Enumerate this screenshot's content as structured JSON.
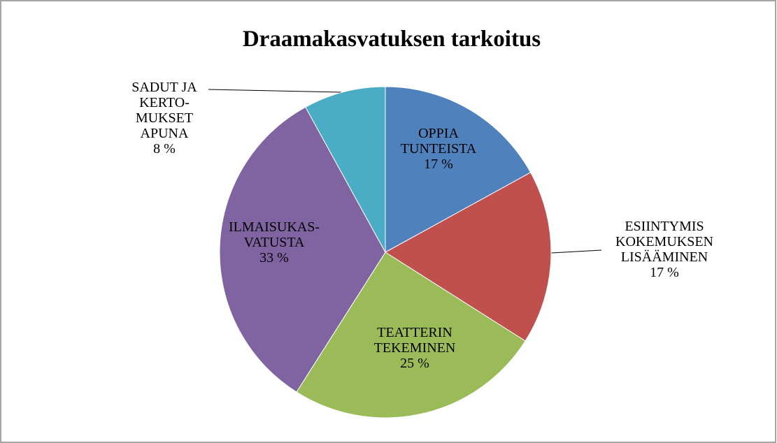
{
  "chart_data": {
    "type": "pie",
    "title": "Draamakasvatuksen tarkoitus",
    "categories": [
      "OPPIA\nTUNTEISTA",
      "ESIINTYMIS\nKOKEMUKSEN\nLISÄÄMINEN",
      "TEATTERIN\nTEKEMINEN",
      "ILMAISUKAS-\nVATUSTA",
      "SADUT JA\nKERTO-\nMUKSET\nAPUNA"
    ],
    "values": [
      17,
      17,
      25,
      33,
      8
    ],
    "value_labels": [
      "17 %",
      "17 %",
      "25 %",
      "33 %",
      "8 %"
    ],
    "colors": [
      "#4f81bd",
      "#c0504d",
      "#9bbb59",
      "#8064a2",
      "#4bacc6"
    ]
  }
}
